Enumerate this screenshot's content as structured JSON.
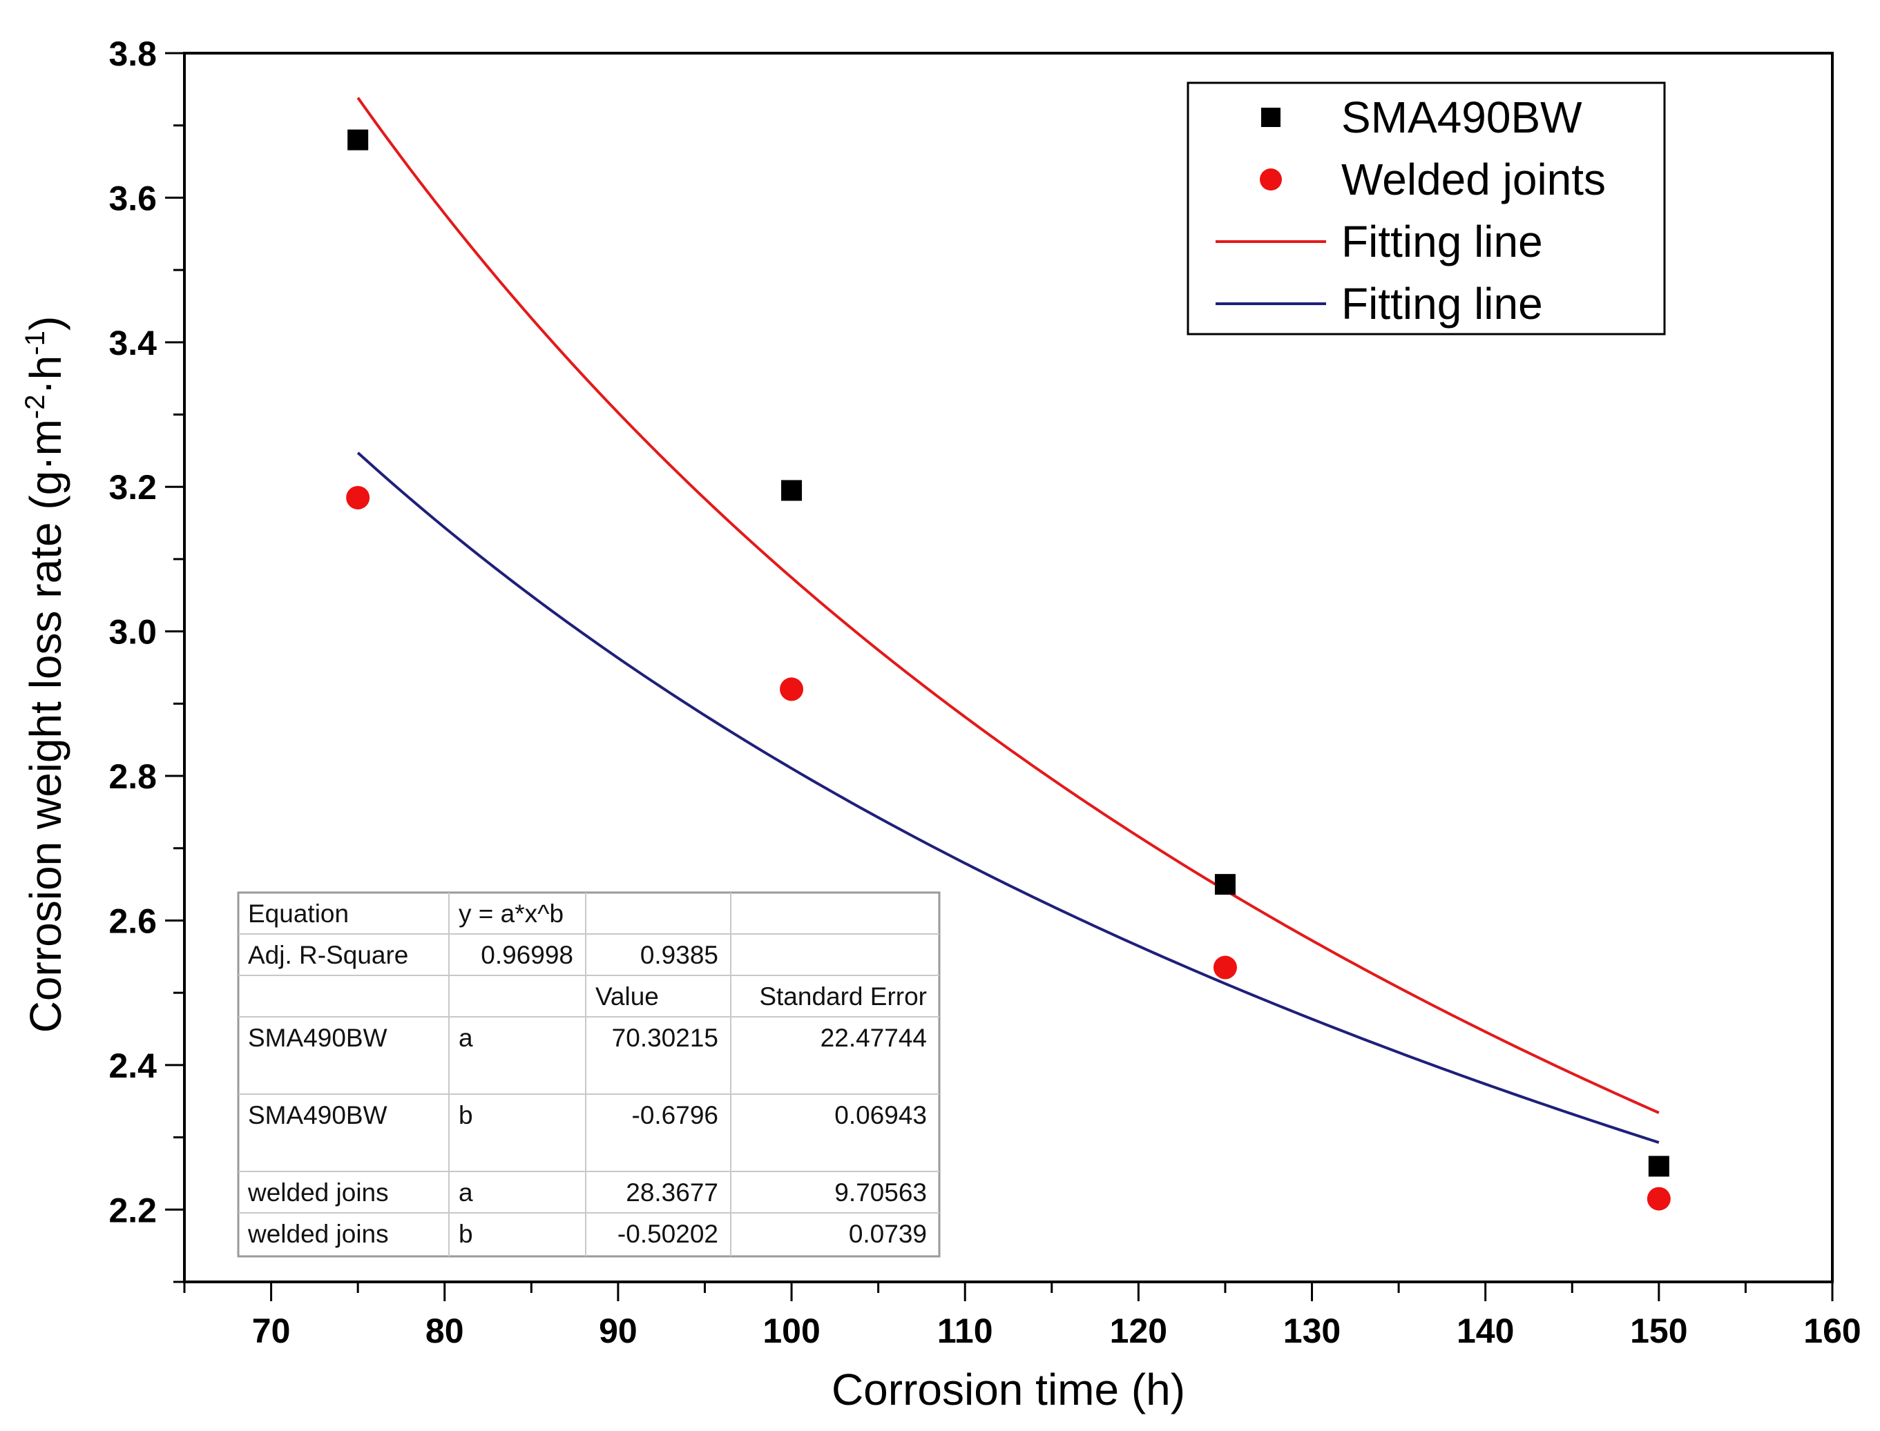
{
  "chart_data": {
    "type": "scatter",
    "xlabel": "Corrosion time (h)",
    "ylabel": "Corrosion weight loss rate (g·m⁻²·h⁻¹)",
    "ylabel_parts": {
      "main": "Corrosion weight loss rate (g·m",
      "exp1": "-2",
      "mid": "·h",
      "exp2": "-1",
      "end": ")"
    },
    "xlim": [
      65,
      160
    ],
    "ylim": [
      2.1,
      3.8
    ],
    "xticks": [
      70,
      80,
      90,
      100,
      110,
      120,
      130,
      140,
      150,
      160
    ],
    "xtick_labels": [
      "70",
      "80",
      "90",
      "100",
      "110",
      "120",
      "130",
      "140",
      "150",
      "160"
    ],
    "yticks": [
      2.2,
      2.4,
      2.6,
      2.8,
      3.0,
      3.2,
      3.4,
      3.6,
      3.8
    ],
    "ytick_labels": [
      "2.2",
      "2.4",
      "2.6",
      "2.8",
      "3.0",
      "3.2",
      "3.4",
      "3.6",
      "3.8"
    ],
    "legend_position": "top-right",
    "series": [
      {
        "name": "SMA490BW",
        "marker": "square",
        "color": "#000000",
        "x": [
          75,
          100,
          125,
          150
        ],
        "y": [
          3.68,
          3.195,
          2.65,
          2.26
        ]
      },
      {
        "name": "Welded joints",
        "marker": "circle",
        "color": "#ee1111",
        "x": [
          75,
          100,
          125,
          150
        ],
        "y": [
          3.185,
          2.92,
          2.535,
          2.215
        ]
      }
    ],
    "fits": [
      {
        "name": "Fitting line",
        "color": "#e31a1a",
        "a": 70.30215,
        "b": -0.6796,
        "x_range": [
          75,
          150
        ]
      },
      {
        "name": "Fitting line",
        "color": "#1f1f7a",
        "a": 28.3677,
        "b": -0.50202,
        "x_range": [
          75,
          150
        ]
      }
    ],
    "table": [
      [
        "Equation",
        "y = a*x^b",
        "",
        ""
      ],
      [
        "Adj. R-Square",
        "0.96998",
        "0.9385",
        ""
      ],
      [
        "",
        "",
        "Value",
        "Standard Error"
      ],
      [
        "SMA490BW",
        "a",
        "70.30215",
        "22.47744"
      ],
      [
        "SMA490BW",
        "b",
        "-0.6796",
        "0.06943"
      ],
      [
        "welded joins",
        "a",
        "28.3677",
        "9.70563"
      ],
      [
        "welded joins",
        "b",
        "-0.50202",
        "0.0739"
      ]
    ]
  }
}
